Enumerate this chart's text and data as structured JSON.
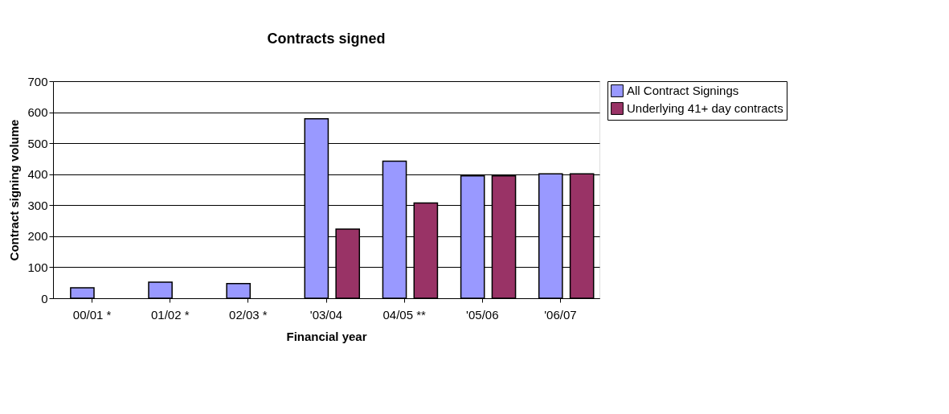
{
  "chart_data": {
    "type": "bar",
    "title": "Contracts signed",
    "xlabel": "Financial year",
    "ylabel": "Contract signing volume",
    "categories": [
      "00/01 *",
      "01/02 *",
      "02/03 *",
      "'03/04",
      "04/05 **",
      "'05/06",
      "'06/07"
    ],
    "series": [
      {
        "name": "All Contract Signings",
        "color": "#9999ff",
        "values": [
          34,
          52,
          47,
          579,
          442,
          395,
          401
        ]
      },
      {
        "name": "Underlying 41+ day contracts",
        "color": "#993366",
        "values": [
          null,
          null,
          null,
          223,
          307,
          395,
          401
        ]
      }
    ],
    "ylim": [
      0,
      700
    ],
    "yticks": [
      0,
      100,
      200,
      300,
      400,
      500,
      600,
      700
    ],
    "grid": "y",
    "legend": "right"
  }
}
